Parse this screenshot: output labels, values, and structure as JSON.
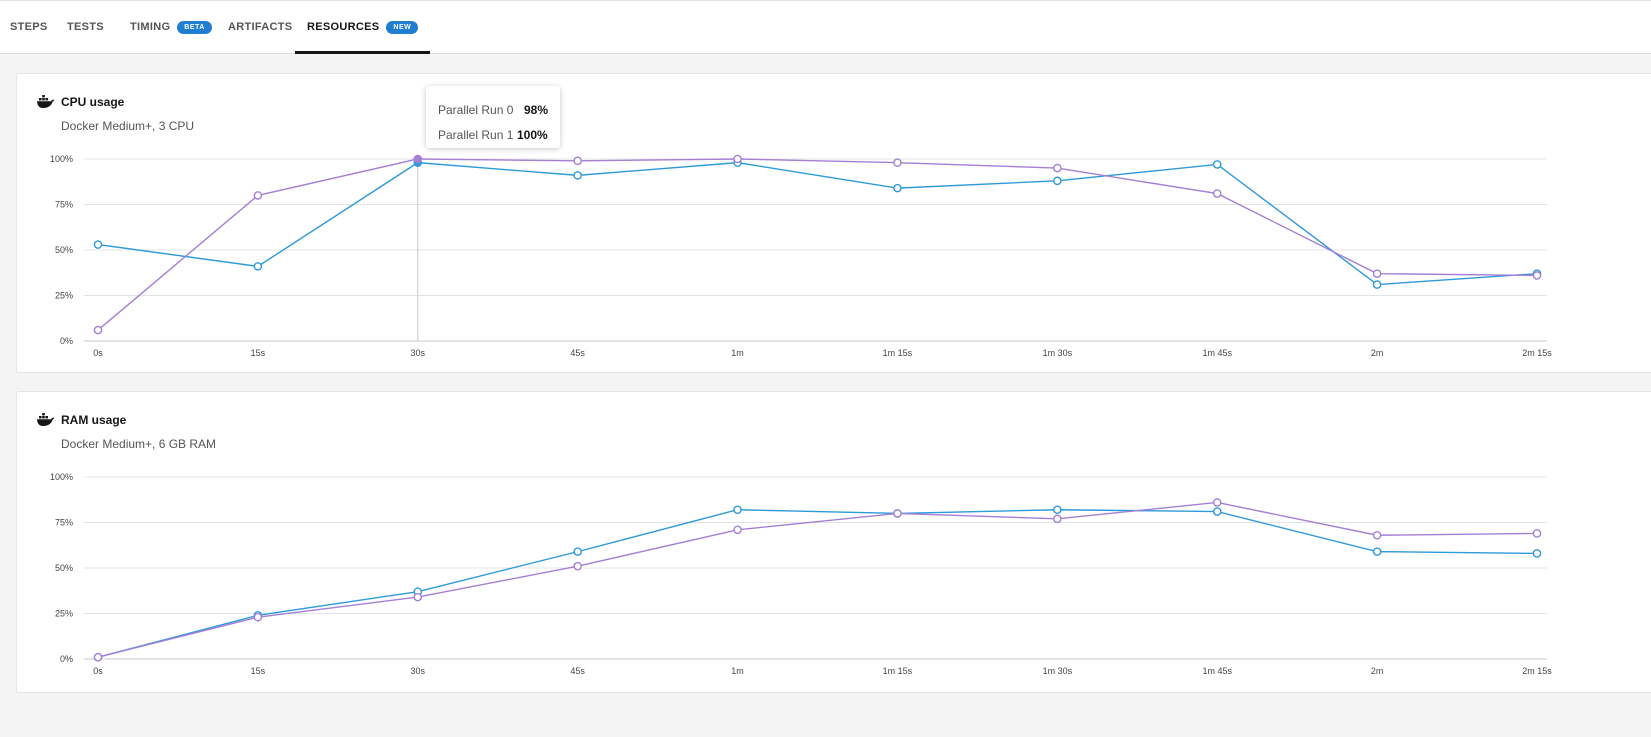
{
  "tabs": [
    {
      "label": "STEPS"
    },
    {
      "label": "TESTS"
    },
    {
      "label": "TIMING",
      "badge": "BETA"
    },
    {
      "label": "ARTIFACTS"
    },
    {
      "label": "RESOURCES",
      "badge": "NEW",
      "active": true
    }
  ],
  "colors": {
    "run0": "#2d9ad9",
    "run1": "#a57fd6",
    "grid": "#e4e4e4",
    "badge": "#1f7ed0"
  },
  "cards": [
    {
      "title": "CPU usage",
      "subtitle": "Docker Medium+, 3 CPU",
      "icon": "docker-icon"
    },
    {
      "title": "RAM usage",
      "subtitle": "Docker Medium+, 6 GB RAM",
      "icon": "docker-icon"
    }
  ],
  "tooltip": {
    "rows": [
      {
        "label": "Parallel Run 0",
        "value": "98%"
      },
      {
        "label": "Parallel Run 1",
        "value": "100%"
      }
    ]
  },
  "chart_data": [
    {
      "type": "line",
      "title": "CPU usage",
      "subtitle": "Docker Medium+, 3 CPU",
      "x": [
        "0s",
        "15s",
        "30s",
        "45s",
        "1m",
        "1m 15s",
        "1m 30s",
        "1m 45s",
        "2m",
        "2m 15s"
      ],
      "y_ticks": [
        "0%",
        "25%",
        "50%",
        "75%",
        "100%"
      ],
      "ylim": [
        0,
        100
      ],
      "grid": true,
      "hover_index": 2,
      "series": [
        {
          "name": "Parallel Run 0",
          "values": [
            53,
            41,
            98,
            91,
            98,
            84,
            88,
            97,
            31,
            37
          ]
        },
        {
          "name": "Parallel Run 1",
          "values": [
            6,
            80,
            100,
            99,
            100,
            98,
            95,
            81,
            37,
            36
          ]
        }
      ]
    },
    {
      "type": "line",
      "title": "RAM usage",
      "subtitle": "Docker Medium+, 6 GB RAM",
      "x": [
        "0s",
        "15s",
        "30s",
        "45s",
        "1m",
        "1m 15s",
        "1m 30s",
        "1m 45s",
        "2m",
        "2m 15s"
      ],
      "y_ticks": [
        "0%",
        "25%",
        "50%",
        "75%",
        "100%"
      ],
      "ylim": [
        0,
        100
      ],
      "grid": true,
      "series": [
        {
          "name": "Parallel Run 0",
          "values": [
            1,
            24,
            37,
            59,
            82,
            80,
            82,
            81,
            59,
            58
          ]
        },
        {
          "name": "Parallel Run 1",
          "values": [
            1,
            23,
            34,
            51,
            71,
            80,
            77,
            86,
            68,
            69
          ]
        }
      ]
    }
  ]
}
